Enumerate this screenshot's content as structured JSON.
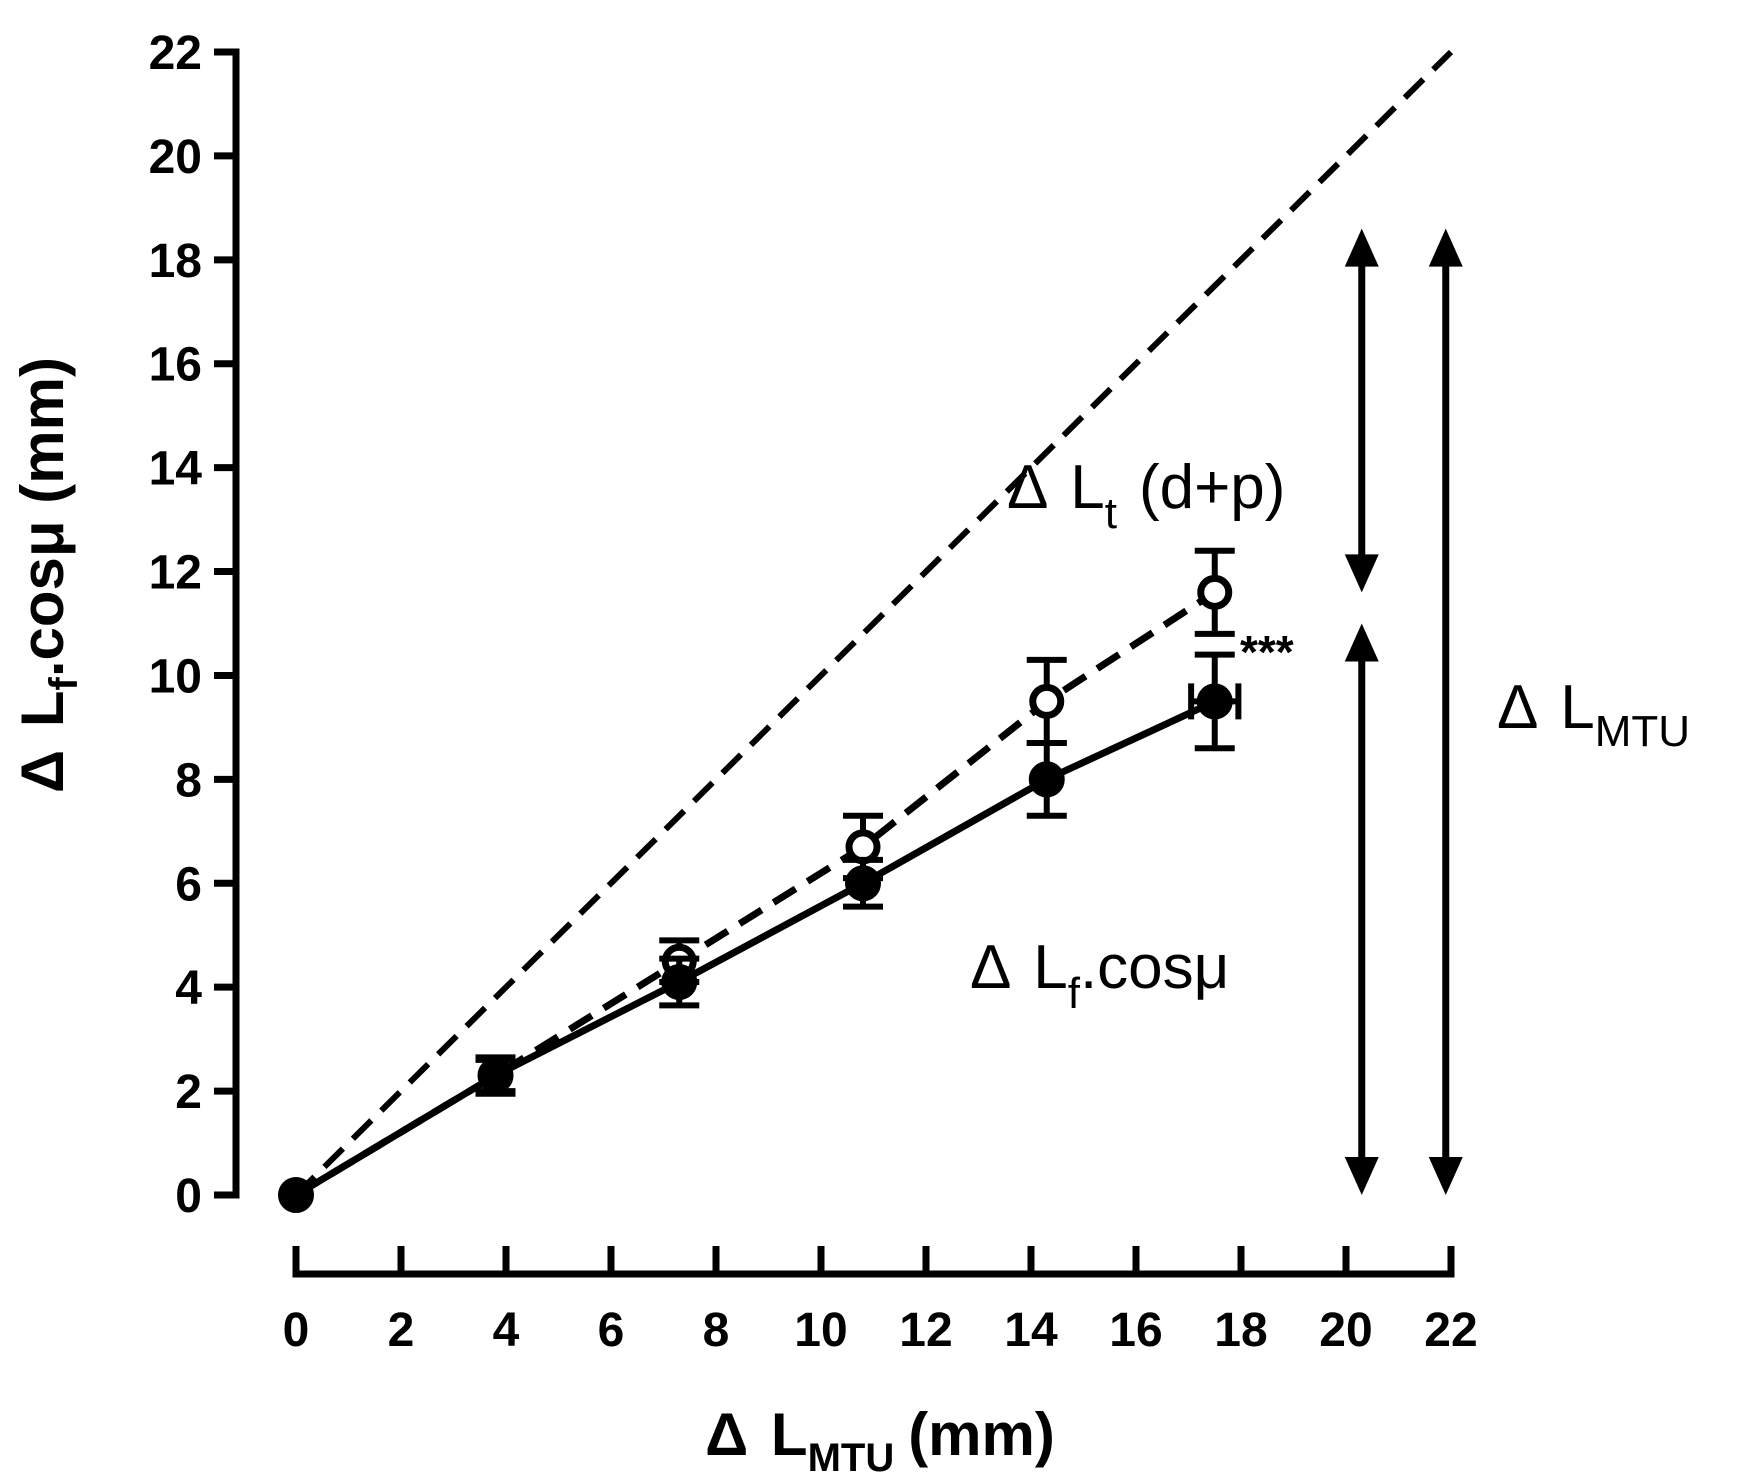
{
  "chart_data": {
    "type": "line",
    "xlabel": {
      "delta": "Δ",
      "main": "L",
      "sub": "MTU",
      "unit": "(mm)"
    },
    "ylabel": {
      "delta": "Δ",
      "main": "L",
      "sub": "f",
      "rest": ".cosμ (mm)"
    },
    "xlim": [
      0,
      22
    ],
    "ylim": [
      0,
      22
    ],
    "xticks": [
      "0",
      "2",
      "4",
      "6",
      "8",
      "10",
      "12",
      "14",
      "16",
      "18",
      "20",
      "22"
    ],
    "yticks": [
      "0",
      "2",
      "4",
      "6",
      "8",
      "10",
      "12",
      "14",
      "16",
      "18",
      "20",
      "22"
    ],
    "grid": false,
    "series": [
      {
        "style": "dashed-identity",
        "x": [
          0,
          22
        ],
        "y": [
          0,
          22
        ]
      },
      {
        "style": "open-circle-dashed",
        "x": [
          0,
          3.8,
          7.3,
          10.8,
          14.3,
          17.5
        ],
        "y": [
          0,
          2.3,
          4.5,
          6.7,
          9.5,
          11.6
        ],
        "yerr": [
          0,
          0.35,
          0.4,
          0.6,
          0.8,
          0.8
        ]
      },
      {
        "style": "filled-circle-solid",
        "x": [
          0,
          3.8,
          7.3,
          10.8,
          14.3,
          17.5
        ],
        "y": [
          0,
          2.3,
          4.1,
          6.0,
          8.0,
          9.5
        ],
        "yerr": [
          0,
          0.3,
          0.45,
          0.45,
          0.7,
          0.9
        ],
        "xerr": [
          0,
          0,
          0,
          0,
          0,
          0.45
        ]
      }
    ],
    "annotations": {
      "lt": {
        "delta": "Δ",
        "main": "L",
        "sub": "t",
        "rest": "(d+p)"
      },
      "lf": {
        "delta": "Δ",
        "main": "L",
        "sub": "f",
        "rest": ".cosμ"
      },
      "lmtu": {
        "delta": "Δ",
        "main": "L",
        "sub": "MTU"
      },
      "stars": "***"
    },
    "arrows": [
      {
        "name": "tendon",
        "x": 20.3,
        "y_from": 11.6,
        "y_to": 18.6
      },
      {
        "name": "fascicle",
        "x": 20.3,
        "y_from": 0,
        "y_to": 11.0
      },
      {
        "name": "mtu",
        "x": 21.9,
        "y_from": 0,
        "y_to": 18.6
      }
    ]
  }
}
